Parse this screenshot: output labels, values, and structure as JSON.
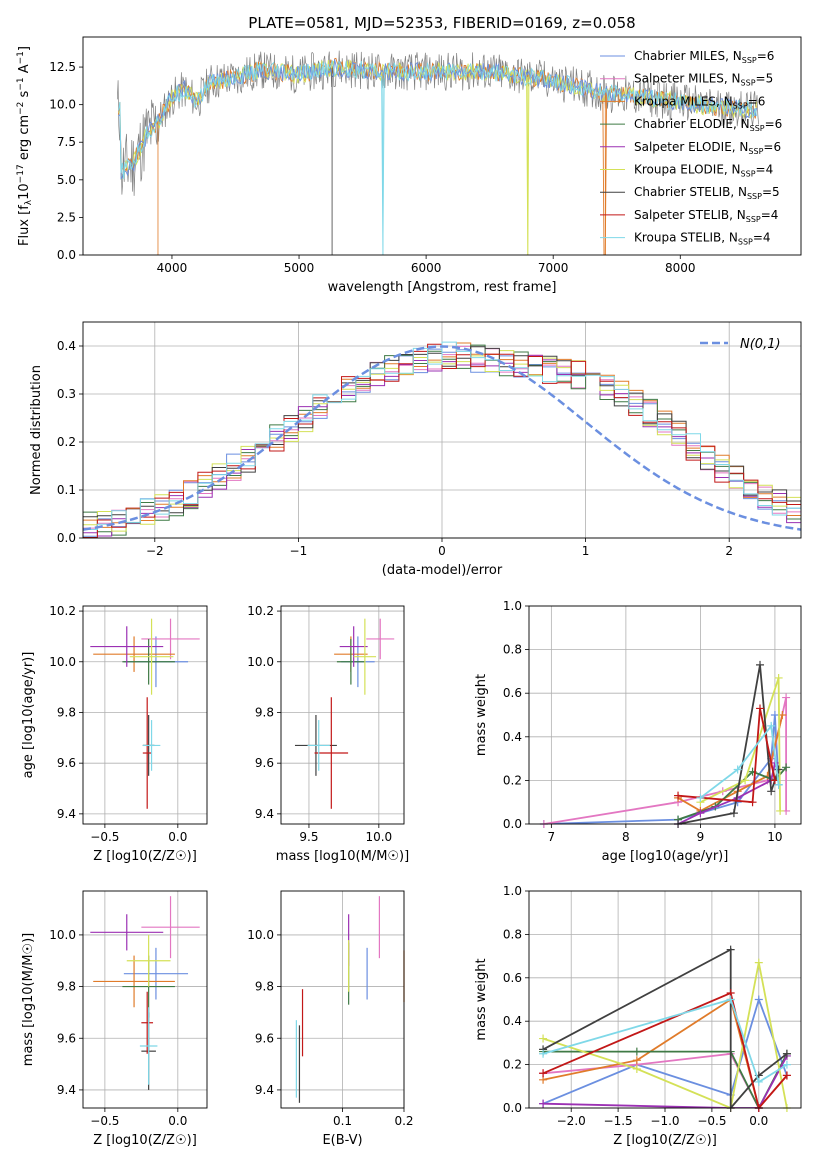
{
  "figure": {
    "title": "PLATE=0581, MJD=52353, FIBERID=0169, z=0.058"
  },
  "series_names": [
    "Chabrier MILES, N_SSP=6",
    "Salpeter MILES, N_SSP=5",
    "Kroupa MILES, N_SSP=6",
    "Chabrier ELODIE, N_SSP=6",
    "Salpeter ELODIE, N_SSP=6",
    "Kroupa ELODIE, N_SSP=4",
    "Chabrier STELIB, N_SSP=5",
    "Salpeter STELIB, N_SSP=4",
    "Kroupa STELIB, N_SSP=4"
  ],
  "colors": [
    "#6b8fe0",
    "#e377c2",
    "#e07b2a",
    "#3f7a45",
    "#9b30b3",
    "#d4e157",
    "#404040",
    "#c21818",
    "#7fd8e8"
  ],
  "chart_data": [
    {
      "type": "line",
      "id": "spectrum",
      "title": "PLATE=0581, MJD=52353, FIBERID=0169, z=0.058",
      "xlabel": "wavelength [Angstrom, rest frame]",
      "ylabel": "Flux [f_λ 10^-17 erg cm^-2 s^-1 A^-1]",
      "xlim": [
        3300,
        8950
      ],
      "ylim": [
        0,
        14.5
      ],
      "xticks": [
        4000,
        5000,
        6000,
        7000,
        8000
      ],
      "yticks": [
        0.0,
        2.5,
        5.0,
        7.5,
        10.0,
        12.5
      ],
      "legend_position": "right",
      "data": {
        "x": [
          3600,
          3700,
          3800,
          3900,
          4000,
          4100,
          4200,
          4300,
          4500,
          4700,
          5000,
          5300,
          5600,
          6000,
          6500,
          7000,
          7200,
          7400,
          7600,
          7800,
          8000,
          8200,
          8400,
          8600
        ],
        "y": [
          5.5,
          6.2,
          8.0,
          9.0,
          10.5,
          11.0,
          10.2,
          11.5,
          11.8,
          12.3,
          12.0,
          12.5,
          12.2,
          12.2,
          12.2,
          11.6,
          11.2,
          10.8,
          10.6,
          10.4,
          10.2,
          9.9,
          9.8,
          9.6
        ]
      }
    },
    {
      "type": "histogram",
      "id": "residuals",
      "xlabel": "(data-model)/error",
      "ylabel": "Normed distribution",
      "xlim": [
        -2.5,
        2.5
      ],
      "ylim": [
        0,
        0.45
      ],
      "xticks": [
        -2,
        -1,
        0,
        1,
        2
      ],
      "yticks": [
        0.0,
        0.1,
        0.2,
        0.3,
        0.4
      ],
      "legend": "N(0,1)",
      "legend_position": "top-right",
      "bin_width": 0.1,
      "base_values": [
        0.025,
        0.03,
        0.035,
        0.045,
        0.055,
        0.065,
        0.075,
        0.09,
        0.11,
        0.13,
        0.145,
        0.165,
        0.185,
        0.21,
        0.23,
        0.25,
        0.27,
        0.29,
        0.31,
        0.33,
        0.345,
        0.355,
        0.365,
        0.37,
        0.375,
        0.38,
        0.38,
        0.375,
        0.37,
        0.365,
        0.36,
        0.355,
        0.35,
        0.345,
        0.34,
        0.33,
        0.315,
        0.3,
        0.28,
        0.26,
        0.24,
        0.215,
        0.19,
        0.17,
        0.145,
        0.125,
        0.105,
        0.09,
        0.075,
        0.06
      ]
    },
    {
      "type": "scatter",
      "id": "age-vs-Z",
      "xlabel": "Z [log10(Z/Z☉)]",
      "ylabel": "age [log10(age/yr)]",
      "xlim": [
        -0.65,
        0.2
      ],
      "ylim": [
        9.36,
        10.22
      ],
      "xticks": [
        -0.5,
        0.0
      ],
      "yticks": [
        9.4,
        9.6,
        9.8,
        10.0,
        10.2
      ],
      "points": [
        {
          "x": -0.15,
          "y": 10.0,
          "xerr": 0.22,
          "yerr": 0.1
        },
        {
          "x": -0.05,
          "y": 10.09,
          "xerr": 0.2,
          "yerr": 0.08
        },
        {
          "x": -0.3,
          "y": 10.03,
          "xerr": 0.28,
          "yerr": 0.07
        },
        {
          "x": -0.2,
          "y": 10.0,
          "xerr": 0.18,
          "yerr": 0.09
        },
        {
          "x": -0.35,
          "y": 10.06,
          "xerr": 0.25,
          "yerr": 0.08
        },
        {
          "x": -0.18,
          "y": 10.02,
          "xerr": 0.15,
          "yerr": 0.15
        },
        {
          "x": -0.2,
          "y": 9.67,
          "xerr": 0.04,
          "yerr": 0.12
        },
        {
          "x": -0.21,
          "y": 9.64,
          "xerr": 0.03,
          "yerr": 0.22
        },
        {
          "x": -0.18,
          "y": 9.67,
          "xerr": 0.06,
          "yerr": 0.1
        }
      ]
    },
    {
      "type": "scatter",
      "id": "age-vs-mass",
      "xlabel": "mass [log10(M/M☉)]",
      "ylabel": "",
      "xlim": [
        9.3,
        10.18
      ],
      "ylim": [
        9.36,
        10.22
      ],
      "xticks": [
        9.5,
        10.0
      ],
      "yticks": [
        9.4,
        9.6,
        9.8,
        10.0,
        10.2
      ],
      "points": [
        {
          "x": 9.85,
          "y": 10.0,
          "xerr": 0.12,
          "yerr": 0.1
        },
        {
          "x": 10.01,
          "y": 10.09,
          "xerr": 0.1,
          "yerr": 0.08
        },
        {
          "x": 9.8,
          "y": 10.03,
          "xerr": 0.12,
          "yerr": 0.07
        },
        {
          "x": 9.8,
          "y": 10.0,
          "xerr": 0.1,
          "yerr": 0.09
        },
        {
          "x": 9.82,
          "y": 10.06,
          "xerr": 0.1,
          "yerr": 0.08
        },
        {
          "x": 9.9,
          "y": 10.02,
          "xerr": 0.08,
          "yerr": 0.15
        },
        {
          "x": 9.55,
          "y": 9.67,
          "xerr": 0.15,
          "yerr": 0.12
        },
        {
          "x": 9.66,
          "y": 9.64,
          "xerr": 0.12,
          "yerr": 0.22
        },
        {
          "x": 9.57,
          "y": 9.67,
          "xerr": 0.08,
          "yerr": 0.1
        }
      ]
    },
    {
      "type": "line",
      "id": "mass-weight-vs-age",
      "xlabel": "age [log10(age/yr)]",
      "ylabel": "mass weight",
      "xlim": [
        6.7,
        10.35
      ],
      "ylim": [
        0,
        1
      ],
      "xticks": [
        7,
        8,
        9,
        10
      ],
      "yticks": [
        0.0,
        0.2,
        0.4,
        0.6,
        0.8,
        1.0
      ],
      "series": [
        {
          "x": [
            6.9,
            8.7,
            9.5,
            9.95,
            10.0,
            10.05
          ],
          "y": [
            0.0,
            0.02,
            0.1,
            0.3,
            0.5,
            0.18
          ]
        },
        {
          "x": [
            6.9,
            8.7,
            9.3,
            9.9,
            10.15,
            10.15
          ],
          "y": [
            0.0,
            0.1,
            0.15,
            0.2,
            0.58,
            0.06
          ]
        },
        {
          "x": [
            8.7,
            9.0,
            9.5,
            9.9,
            10.1
          ],
          "y": [
            0.12,
            0.06,
            0.15,
            0.22,
            0.5
          ]
        },
        {
          "x": [
            8.7,
            9.2,
            9.7,
            10.0,
            10.15
          ],
          "y": [
            0.02,
            0.08,
            0.24,
            0.2,
            0.26
          ]
        },
        {
          "x": [
            8.7,
            9.0,
            9.5,
            9.95,
            10.0
          ],
          "y": [
            0.0,
            0.05,
            0.12,
            0.2,
            0.28
          ]
        },
        {
          "x": [
            9.0,
            9.6,
            10.05,
            10.07
          ],
          "y": [
            0.1,
            0.2,
            0.67,
            0.06
          ]
        },
        {
          "x": [
            8.7,
            9.45,
            9.8,
            9.95,
            10.05
          ],
          "y": [
            0.0,
            0.05,
            0.73,
            0.15,
            0.25
          ]
        },
        {
          "x": [
            8.7,
            9.7,
            9.8,
            10.0
          ],
          "y": [
            0.13,
            0.1,
            0.53,
            0.2
          ]
        },
        {
          "x": [
            9.0,
            9.5,
            9.95,
            10.05
          ],
          "y": [
            0.12,
            0.25,
            0.45,
            0.18
          ]
        }
      ]
    },
    {
      "type": "scatter",
      "id": "mass-vs-Z",
      "xlabel": "Z [log10(Z/Z☉)]",
      "ylabel": "mass [log10(M/M☉)]",
      "xlim": [
        -0.65,
        0.2
      ],
      "ylim": [
        9.33,
        10.17
      ],
      "xticks": [
        -0.5,
        0.0
      ],
      "yticks": [
        9.4,
        9.6,
        9.8,
        10.0
      ],
      "points": [
        {
          "x": -0.15,
          "y": 9.85,
          "xerr": 0.22,
          "yerr": 0.1
        },
        {
          "x": -0.05,
          "y": 10.03,
          "xerr": 0.2,
          "yerr": 0.12
        },
        {
          "x": -0.3,
          "y": 9.82,
          "xerr": 0.28,
          "yerr": 0.1
        },
        {
          "x": -0.2,
          "y": 9.8,
          "xerr": 0.18,
          "yerr": 0.12
        },
        {
          "x": -0.35,
          "y": 10.01,
          "xerr": 0.25,
          "yerr": 0.07
        },
        {
          "x": -0.2,
          "y": 9.9,
          "xerr": 0.15,
          "yerr": 0.1
        },
        {
          "x": -0.2,
          "y": 9.55,
          "xerr": 0.05,
          "yerr": 0.15
        },
        {
          "x": -0.21,
          "y": 9.66,
          "xerr": 0.04,
          "yerr": 0.12
        },
        {
          "x": -0.2,
          "y": 9.57,
          "xerr": 0.06,
          "yerr": 0.15
        }
      ]
    },
    {
      "type": "scatter",
      "id": "mass-vs-ebv",
      "xlabel": "E(B-V)",
      "ylabel": "",
      "xlim": [
        0.0,
        0.2
      ],
      "ylim": [
        9.33,
        10.17
      ],
      "xticks": [
        0.1,
        0.2
      ],
      "yticks": [
        9.4,
        9.6,
        9.8,
        10.0
      ],
      "points": [
        {
          "x": 0.14,
          "y": 9.85,
          "xerr": 0,
          "yerr": 0.1
        },
        {
          "x": 0.16,
          "y": 10.03,
          "xerr": 0,
          "yerr": 0.12
        },
        {
          "x": 0.2,
          "y": 9.84,
          "xerr": 0,
          "yerr": 0.1
        },
        {
          "x": 0.11,
          "y": 9.85,
          "xerr": 0,
          "yerr": 0.12
        },
        {
          "x": 0.11,
          "y": 9.98,
          "xerr": 0,
          "yerr": 0.1
        },
        {
          "x": 0.11,
          "y": 9.88,
          "xerr": 0,
          "yerr": 0.1
        },
        {
          "x": 0.03,
          "y": 9.5,
          "xerr": 0,
          "yerr": 0.15
        },
        {
          "x": 0.035,
          "y": 9.66,
          "xerr": 0,
          "yerr": 0.13
        },
        {
          "x": 0.025,
          "y": 9.52,
          "xerr": 0,
          "yerr": 0.15
        }
      ]
    },
    {
      "type": "line",
      "id": "mass-weight-vs-Z",
      "xlabel": "Z [log10(Z/Z☉)]",
      "ylabel": "mass weight",
      "xlim": [
        -2.45,
        0.45
      ],
      "ylim": [
        0,
        1
      ],
      "xticks": [
        -2.0,
        -1.5,
        -1.0,
        -0.5,
        0.0
      ],
      "yticks": [
        0.0,
        0.2,
        0.4,
        0.6,
        0.8,
        1.0
      ],
      "series": [
        {
          "x": [
            -2.3,
            -1.3,
            -0.3,
            0.0,
            0.3
          ],
          "y": [
            0.02,
            0.2,
            0.06,
            0.5,
            0.15
          ]
        },
        {
          "x": [
            -2.3,
            -1.3,
            -0.3,
            0.0,
            0.3
          ],
          "y": [
            0.16,
            0.2,
            0.25,
            0.0,
            0.15
          ]
        },
        {
          "x": [
            -2.3,
            -1.3,
            -0.3,
            0.0,
            0.3
          ],
          "y": [
            0.13,
            0.22,
            0.5,
            0.0,
            0.15
          ]
        },
        {
          "x": [
            -2.3,
            -1.3,
            -0.3,
            0.0,
            0.3
          ],
          "y": [
            0.26,
            0.26,
            0.26,
            0.0,
            0.25
          ]
        },
        {
          "x": [
            -2.3,
            -0.3,
            0.0,
            0.3
          ],
          "y": [
            0.02,
            0.0,
            0.0,
            0.24
          ]
        },
        {
          "x": [
            -2.3,
            -1.3,
            -0.3,
            0.0,
            0.3
          ],
          "y": [
            0.32,
            0.18,
            0.0,
            0.67,
            0.0
          ]
        },
        {
          "x": [
            -2.3,
            -0.3,
            -0.3,
            0.0,
            0.3
          ],
          "y": [
            0.27,
            0.73,
            0.0,
            0.15,
            0.25
          ]
        },
        {
          "x": [
            -2.3,
            -0.3,
            0.0,
            0.3
          ],
          "y": [
            0.16,
            0.53,
            0.0,
            0.15
          ]
        },
        {
          "x": [
            -2.3,
            -0.3,
            0.0,
            0.3
          ],
          "y": [
            0.25,
            0.5,
            0.12,
            0.2
          ]
        }
      ]
    }
  ]
}
